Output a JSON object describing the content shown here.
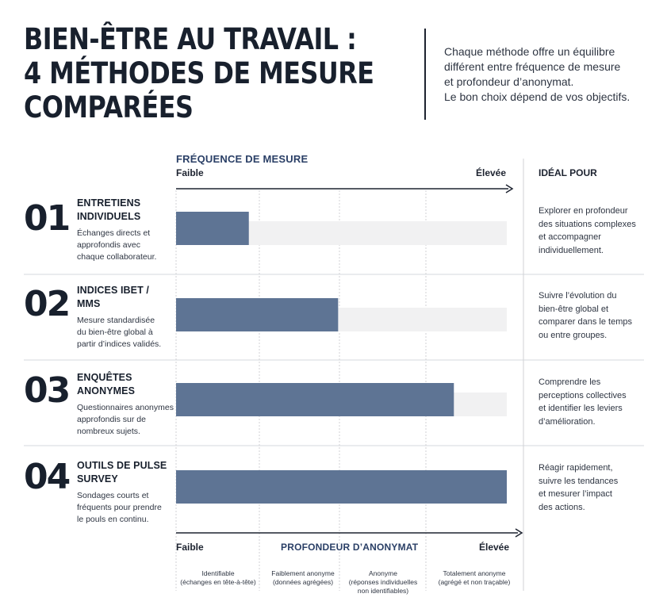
{
  "header": {
    "title_lines": [
      "BIEN-ÊTRE AU TRAVAIL :",
      "4 MÉTHODES DE MESURE",
      "COMPARÉES"
    ],
    "intro_lines": [
      "Chaque méthode offre un équilibre",
      "différent entre fréquence de mesure",
      "et profondeur d’anonymat.",
      "Le bon choix dépend de vos objectifs."
    ]
  },
  "colors": {
    "bar": "#5e7494",
    "track": "#f1f1f2",
    "axis": "#1d2330",
    "grid": "#d0d2d6",
    "accent_text": "#2a3f66"
  },
  "chart_data": {
    "type": "bar",
    "orientation": "horizontal",
    "top_axis": {
      "title": "FRÉQUENCE DE MESURE",
      "min_label": "Faible",
      "max_label": "Élevée"
    },
    "bottom_axis": {
      "title": "PROFONDEUR D’ANONYMAT",
      "min_label": "Faible",
      "max_label": "Élevée"
    },
    "column_header": "IDÉAL POUR",
    "xlim": [
      0,
      1
    ],
    "scale_levels": [
      {
        "lines": [
          "Identifiable",
          "(échanges en tête-à-tête)"
        ]
      },
      {
        "lines": [
          "Faiblement anonyme",
          "(données agrégées)"
        ]
      },
      {
        "lines": [
          "Anonyme",
          "(réponses individuelles",
          "non identifiables)"
        ]
      },
      {
        "lines": [
          "Totalement anonyme",
          "(agrégé et non traçable)"
        ]
      }
    ],
    "categories": [
      "01",
      "02",
      "03",
      "04"
    ],
    "values": [
      0.22,
      0.49,
      0.84,
      1.0
    ],
    "rows": [
      {
        "number": "01",
        "name_lines": [
          "ENTRETIENS",
          "INDIVIDUELS"
        ],
        "desc_lines": [
          "Échanges directs et",
          "approfondis avec",
          "chaque collaborateur."
        ],
        "ideal_lines": [
          "Explorer en profondeur",
          "des situations complexes",
          "et accompagner",
          "individuellement."
        ],
        "value": 0.22
      },
      {
        "number": "02",
        "name_lines": [
          "INDICES IBET /",
          "MMS"
        ],
        "desc_lines": [
          "Mesure standardisée",
          "du bien-être global à",
          "partir d’indices validés."
        ],
        "ideal_lines": [
          "Suivre l’évolution du",
          "bien-être global et",
          "comparer dans le temps",
          "ou entre groupes."
        ],
        "value": 0.49
      },
      {
        "number": "03",
        "name_lines": [
          "ENQUÊTES",
          "ANONYMES"
        ],
        "desc_lines": [
          "Questionnaires anonymes",
          "approfondis sur de",
          "nombreux sujets."
        ],
        "ideal_lines": [
          "Comprendre les",
          "perceptions collectives",
          "et identifier les leviers",
          "d’amélioration."
        ],
        "value": 0.84
      },
      {
        "number": "04",
        "name_lines": [
          "OUTILS DE PULSE",
          "SURVEY"
        ],
        "desc_lines": [
          "Sondages courts et",
          "fréquents pour prendre",
          "le pouls en continu."
        ],
        "ideal_lines": [
          "Réagir rapidement,",
          "suivre les tendances",
          "et mesurer l’impact",
          "des actions."
        ],
        "value": 1.0
      }
    ]
  }
}
